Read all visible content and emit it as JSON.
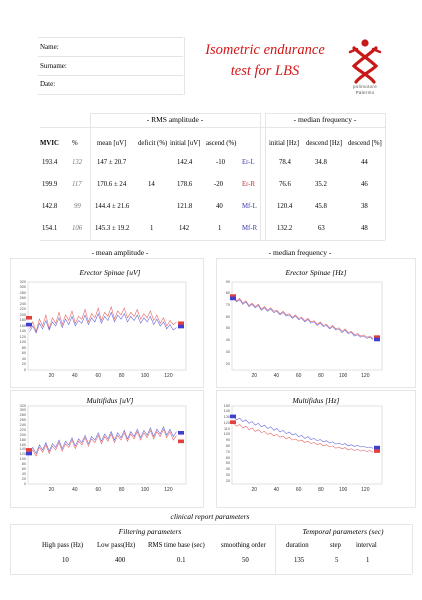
{
  "header": {
    "fields": [
      "Name:",
      "Surname:",
      "Date:"
    ],
    "title_lines": [
      "Isometric endurance",
      "test for LBS"
    ],
    "logo_text": [
      "polimotore",
      "Palermo"
    ]
  },
  "results": {
    "rms_title": "- RMS amplitude -",
    "median_title": "- median frequency -",
    "col_headers": [
      "MVIC",
      "%",
      "mean [uV]",
      "deficit (%)",
      "initial [uV]",
      "ascend (%)",
      "initial [Hz]",
      "descend [Hz]",
      "descend [%]"
    ],
    "rows": [
      {
        "mvic": "193.4",
        "pct": "132",
        "mean": "147 ± 20.7",
        "deficit": "",
        "initial": "142.4",
        "ascend": "-10",
        "label": "Er-L",
        "mf_initial": "78.4",
        "mf_descend": "34.8",
        "mf_descend_pct": "44"
      },
      {
        "mvic": "199.9",
        "pct": "117",
        "mean": "170.6 ± 24",
        "deficit": "14",
        "initial": "178.6",
        "ascend": "-20",
        "label": "Er-R",
        "mf_initial": "76.6",
        "mf_descend": "35.2",
        "mf_descend_pct": "46"
      },
      {
        "mvic": "142.8",
        "pct": "99",
        "mean": "144.4 ± 21.6",
        "deficit": "",
        "initial": "121.8",
        "ascend": "40",
        "label": "Mf-L",
        "mf_initial": "120.4",
        "mf_descend": "45.8",
        "mf_descend_pct": "38"
      },
      {
        "mvic": "154.1",
        "pct": "106",
        "mean": "145.3 ± 19.2",
        "deficit": "1",
        "initial": "142",
        "ascend": "1",
        "label": "Mf-R",
        "mf_initial": "132.2",
        "mf_descend": "63",
        "mf_descend_pct": "48"
      }
    ]
  },
  "charts_section": {
    "left_title": "- mean amplitude -",
    "right_title": "- median frequency -"
  },
  "chart_data": [
    {
      "type": "line",
      "title": "Erector Spinae [uV]",
      "x_ticks": [
        "20",
        "40",
        "60",
        "80",
        "100",
        "120"
      ],
      "y_ticks": [
        "320",
        "300",
        "280",
        "260",
        "240",
        "220",
        "200",
        "180",
        "160",
        "140",
        "120",
        "100",
        "80",
        "60",
        "40",
        "20",
        "0"
      ],
      "xlim": [
        0,
        135
      ],
      "ylim": [
        0,
        320
      ],
      "series": [
        {
          "color": "#e04040",
          "values": [
            150,
            175,
            140,
            185,
            160,
            200,
            150,
            190,
            170,
            210,
            165,
            200,
            180,
            215,
            170,
            195,
            185,
            220,
            175,
            205,
            190,
            225,
            180,
            210,
            195,
            230,
            185,
            215,
            200,
            225,
            190,
            210,
            195,
            220,
            185,
            205,
            190,
            215,
            180,
            200,
            170,
            190,
            160,
            180,
            165,
            175
          ]
        },
        {
          "color": "#4040d0",
          "values": [
            140,
            160,
            135,
            170,
            150,
            180,
            145,
            175,
            160,
            190,
            155,
            185,
            165,
            195,
            160,
            180,
            170,
            200,
            165,
            190,
            175,
            205,
            170,
            195,
            180,
            210,
            175,
            200,
            185,
            205,
            175,
            195,
            180,
            200,
            170,
            190,
            175,
            195,
            165,
            185,
            160,
            175,
            150,
            165,
            145,
            155
          ]
        }
      ],
      "start_markers": [
        {
          "color": "#e04040",
          "value": 190
        },
        {
          "color": "#4040d0",
          "value": 165
        }
      ],
      "end_markers": [
        {
          "color": "#e04040",
          "value": 170
        },
        {
          "color": "#4040d0",
          "value": 158
        }
      ]
    },
    {
      "type": "line",
      "title": "Erector Spinae [Hz]",
      "x_ticks": [
        "20",
        "40",
        "60",
        "80",
        "100",
        "120"
      ],
      "y_ticks": [
        "90",
        "80",
        "70",
        "60",
        "50",
        "40",
        "30",
        "20"
      ],
      "xlim": [
        0,
        135
      ],
      "ylim": [
        15,
        90
      ],
      "series": [
        {
          "color": "#e04040",
          "values": [
            78,
            74,
            76,
            72,
            74,
            70,
            72,
            69,
            71,
            67,
            69,
            66,
            68,
            65,
            66,
            63,
            65,
            62,
            63,
            60,
            62,
            59,
            60,
            57,
            59,
            56,
            57,
            54,
            56,
            53,
            54,
            51,
            53,
            50,
            51,
            48,
            50,
            47,
            48,
            45,
            46,
            44,
            45,
            43,
            44,
            42
          ]
        },
        {
          "color": "#4040d0",
          "values": [
            76,
            73,
            75,
            71,
            73,
            69,
            71,
            68,
            70,
            66,
            68,
            65,
            67,
            64,
            65,
            62,
            64,
            61,
            62,
            59,
            61,
            58,
            59,
            56,
            58,
            55,
            56,
            53,
            55,
            52,
            53,
            50,
            52,
            49,
            50,
            47,
            49,
            46,
            47,
            44,
            45,
            43,
            44,
            42,
            43,
            41
          ]
        }
      ],
      "start_markers": [
        {
          "color": "#e04040",
          "value": 78
        },
        {
          "color": "#4040d0",
          "value": 76
        }
      ],
      "end_markers": [
        {
          "color": "#e04040",
          "value": 43
        },
        {
          "color": "#4040d0",
          "value": 41
        }
      ]
    },
    {
      "type": "line",
      "title": "Multifidus [uV]",
      "x_ticks": [
        "20",
        "40",
        "60",
        "80",
        "100",
        "120"
      ],
      "y_ticks": [
        "320",
        "300",
        "280",
        "260",
        "240",
        "220",
        "200",
        "180",
        "160",
        "140",
        "120",
        "100",
        "80",
        "60",
        "40",
        "20",
        "0"
      ],
      "xlim": [
        0,
        135
      ],
      "ylim": [
        0,
        320
      ],
      "series": [
        {
          "color": "#e04040",
          "values": [
            120,
            140,
            115,
            150,
            130,
            160,
            125,
            155,
            140,
            170,
            135,
            165,
            150,
            180,
            145,
            175,
            160,
            190,
            155,
            185,
            170,
            200,
            165,
            195,
            175,
            205,
            170,
            200,
            180,
            210,
            175,
            205,
            185,
            215,
            180,
            210,
            190,
            220,
            185,
            215,
            195,
            225,
            190,
            215,
            180,
            200
          ]
        },
        {
          "color": "#4040d0",
          "values": [
            130,
            150,
            125,
            160,
            140,
            170,
            135,
            165,
            150,
            180,
            145,
            175,
            160,
            190,
            155,
            185,
            170,
            200,
            165,
            195,
            180,
            210,
            175,
            205,
            185,
            215,
            180,
            210,
            190,
            220,
            185,
            215,
            195,
            225,
            190,
            220,
            200,
            230,
            195,
            225,
            205,
            235,
            200,
            225,
            195,
            215
          ]
        }
      ],
      "start_markers": [
        {
          "color": "#e04040",
          "value": 140
        },
        {
          "color": "#4040d0",
          "value": 125
        }
      ],
      "end_markers": [
        {
          "color": "#e04040",
          "value": 175
        },
        {
          "color": "#4040d0",
          "value": 210
        }
      ]
    },
    {
      "type": "line",
      "title": "Multifidus [Hz]",
      "x_ticks": [
        "20",
        "40",
        "60",
        "80",
        "100",
        "120"
      ],
      "y_ticks": [
        "150",
        "140",
        "130",
        "120",
        "110",
        "100",
        "90",
        "80",
        "70",
        "60",
        "50",
        "40",
        "30",
        "20"
      ],
      "xlim": [
        0,
        135
      ],
      "ylim": [
        15,
        150
      ],
      "series": [
        {
          "color": "#e04040",
          "values": [
            120,
            115,
            118,
            112,
            115,
            109,
            112,
            106,
            109,
            104,
            106,
            101,
            103,
            98,
            101,
            96,
            98,
            93,
            96,
            91,
            93,
            89,
            91,
            87,
            89,
            85,
            87,
            83,
            85,
            81,
            83,
            79,
            81,
            77,
            79,
            76,
            78,
            74,
            76,
            73,
            75,
            72,
            74,
            71,
            73,
            70
          ]
        },
        {
          "color": "#4040d0",
          "values": [
            132,
            126,
            129,
            123,
            126,
            120,
            123,
            117,
            120,
            114,
            117,
            111,
            114,
            108,
            111,
            105,
            108,
            102,
            105,
            100,
            102,
            97,
            99,
            94,
            97,
            92,
            94,
            90,
            92,
            88,
            90,
            86,
            88,
            84,
            86,
            83,
            85,
            81,
            83,
            80,
            82,
            79,
            80,
            78,
            79,
            77
          ]
        }
      ],
      "start_markers": [
        {
          "color": "#e04040",
          "value": 122
        },
        {
          "color": "#4040d0",
          "value": 132
        }
      ],
      "end_markers": [
        {
          "color": "#e04040",
          "value": 72
        },
        {
          "color": "#4040d0",
          "value": 78
        }
      ]
    }
  ],
  "footer": {
    "title": "clinical report parameters",
    "filtering_title": "Filtering parameters",
    "temporal_title": "Temporal parameters (sec)",
    "filtering_headers": [
      "High pass (Hz)",
      "Low pass(Hz)",
      "RMS time base (sec)",
      "smoothing order"
    ],
    "filtering_values": [
      "10",
      "400",
      "0.1",
      "50"
    ],
    "temporal_headers": [
      "duration",
      "step",
      "interval"
    ],
    "temporal_values": [
      "135",
      "5",
      "1"
    ]
  },
  "colors": {
    "title": "#d01818",
    "series_red": "#e04040",
    "series_blue": "#4040d0"
  }
}
